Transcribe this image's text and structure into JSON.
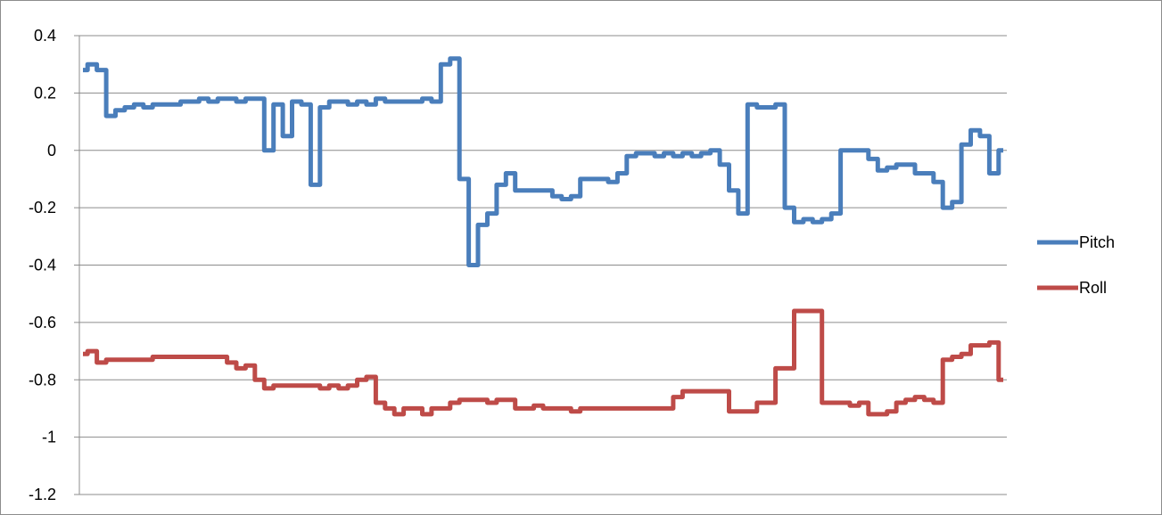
{
  "chart_data": {
    "type": "line",
    "title": "",
    "xlabel": "",
    "ylabel": "",
    "ylim": [
      -1.2,
      0.4
    ],
    "yticks": [
      "0.4",
      "0.2",
      "0",
      "-0.2",
      "-0.4",
      "-0.6",
      "-0.8",
      "-1",
      "-1.2"
    ],
    "ytick_values": [
      0.4,
      0.2,
      0,
      -0.2,
      -0.4,
      -0.6,
      -0.8,
      -1,
      -1.2
    ],
    "grid": true,
    "legend_position": "right",
    "x_count": 100,
    "series": [
      {
        "name": "Pitch",
        "color": "#4a7ebb",
        "values": [
          0.28,
          0.3,
          0.28,
          0.12,
          0.14,
          0.15,
          0.16,
          0.15,
          0.16,
          0.16,
          0.16,
          0.17,
          0.17,
          0.18,
          0.17,
          0.18,
          0.18,
          0.17,
          0.18,
          0.18,
          0.0,
          0.16,
          0.05,
          0.17,
          0.16,
          -0.12,
          0.15,
          0.17,
          0.17,
          0.16,
          0.17,
          0.16,
          0.18,
          0.17,
          0.17,
          0.17,
          0.17,
          0.18,
          0.17,
          0.3,
          0.32,
          -0.1,
          -0.4,
          -0.26,
          -0.22,
          -0.12,
          -0.08,
          -0.14,
          -0.14,
          -0.14,
          -0.14,
          -0.16,
          -0.17,
          -0.16,
          -0.1,
          -0.1,
          -0.1,
          -0.11,
          -0.08,
          -0.02,
          -0.01,
          -0.01,
          -0.02,
          -0.01,
          -0.02,
          -0.01,
          -0.02,
          -0.01,
          0.0,
          -0.05,
          -0.14,
          -0.22,
          0.16,
          0.15,
          0.15,
          0.16,
          -0.2,
          -0.25,
          -0.24,
          -0.25,
          -0.24,
          -0.22,
          0.0,
          0.0,
          0.0,
          -0.03,
          -0.07,
          -0.06,
          -0.05,
          -0.05,
          -0.08,
          -0.08,
          -0.11,
          -0.2,
          -0.18,
          0.02,
          0.07,
          0.05,
          -0.08,
          0.0
        ]
      },
      {
        "name": "Roll",
        "color": "#be4b48",
        "values": [
          -0.71,
          -0.7,
          -0.74,
          -0.73,
          -0.73,
          -0.73,
          -0.73,
          -0.73,
          -0.72,
          -0.72,
          -0.72,
          -0.72,
          -0.72,
          -0.72,
          -0.72,
          -0.72,
          -0.74,
          -0.76,
          -0.75,
          -0.8,
          -0.83,
          -0.82,
          -0.82,
          -0.82,
          -0.82,
          -0.82,
          -0.83,
          -0.82,
          -0.83,
          -0.82,
          -0.8,
          -0.79,
          -0.88,
          -0.9,
          -0.92,
          -0.9,
          -0.9,
          -0.92,
          -0.9,
          -0.9,
          -0.88,
          -0.87,
          -0.87,
          -0.87,
          -0.88,
          -0.87,
          -0.87,
          -0.9,
          -0.9,
          -0.89,
          -0.9,
          -0.9,
          -0.9,
          -0.91,
          -0.9,
          -0.9,
          -0.9,
          -0.9,
          -0.9,
          -0.9,
          -0.9,
          -0.9,
          -0.9,
          -0.9,
          -0.86,
          -0.84,
          -0.84,
          -0.84,
          -0.84,
          -0.84,
          -0.91,
          -0.91,
          -0.91,
          -0.88,
          -0.88,
          -0.76,
          -0.76,
          -0.56,
          -0.56,
          -0.56,
          -0.88,
          -0.88,
          -0.88,
          -0.89,
          -0.88,
          -0.92,
          -0.92,
          -0.91,
          -0.88,
          -0.87,
          -0.86,
          -0.87,
          -0.88,
          -0.73,
          -0.72,
          -0.71,
          -0.68,
          -0.68,
          -0.67,
          -0.8
        ]
      }
    ]
  }
}
